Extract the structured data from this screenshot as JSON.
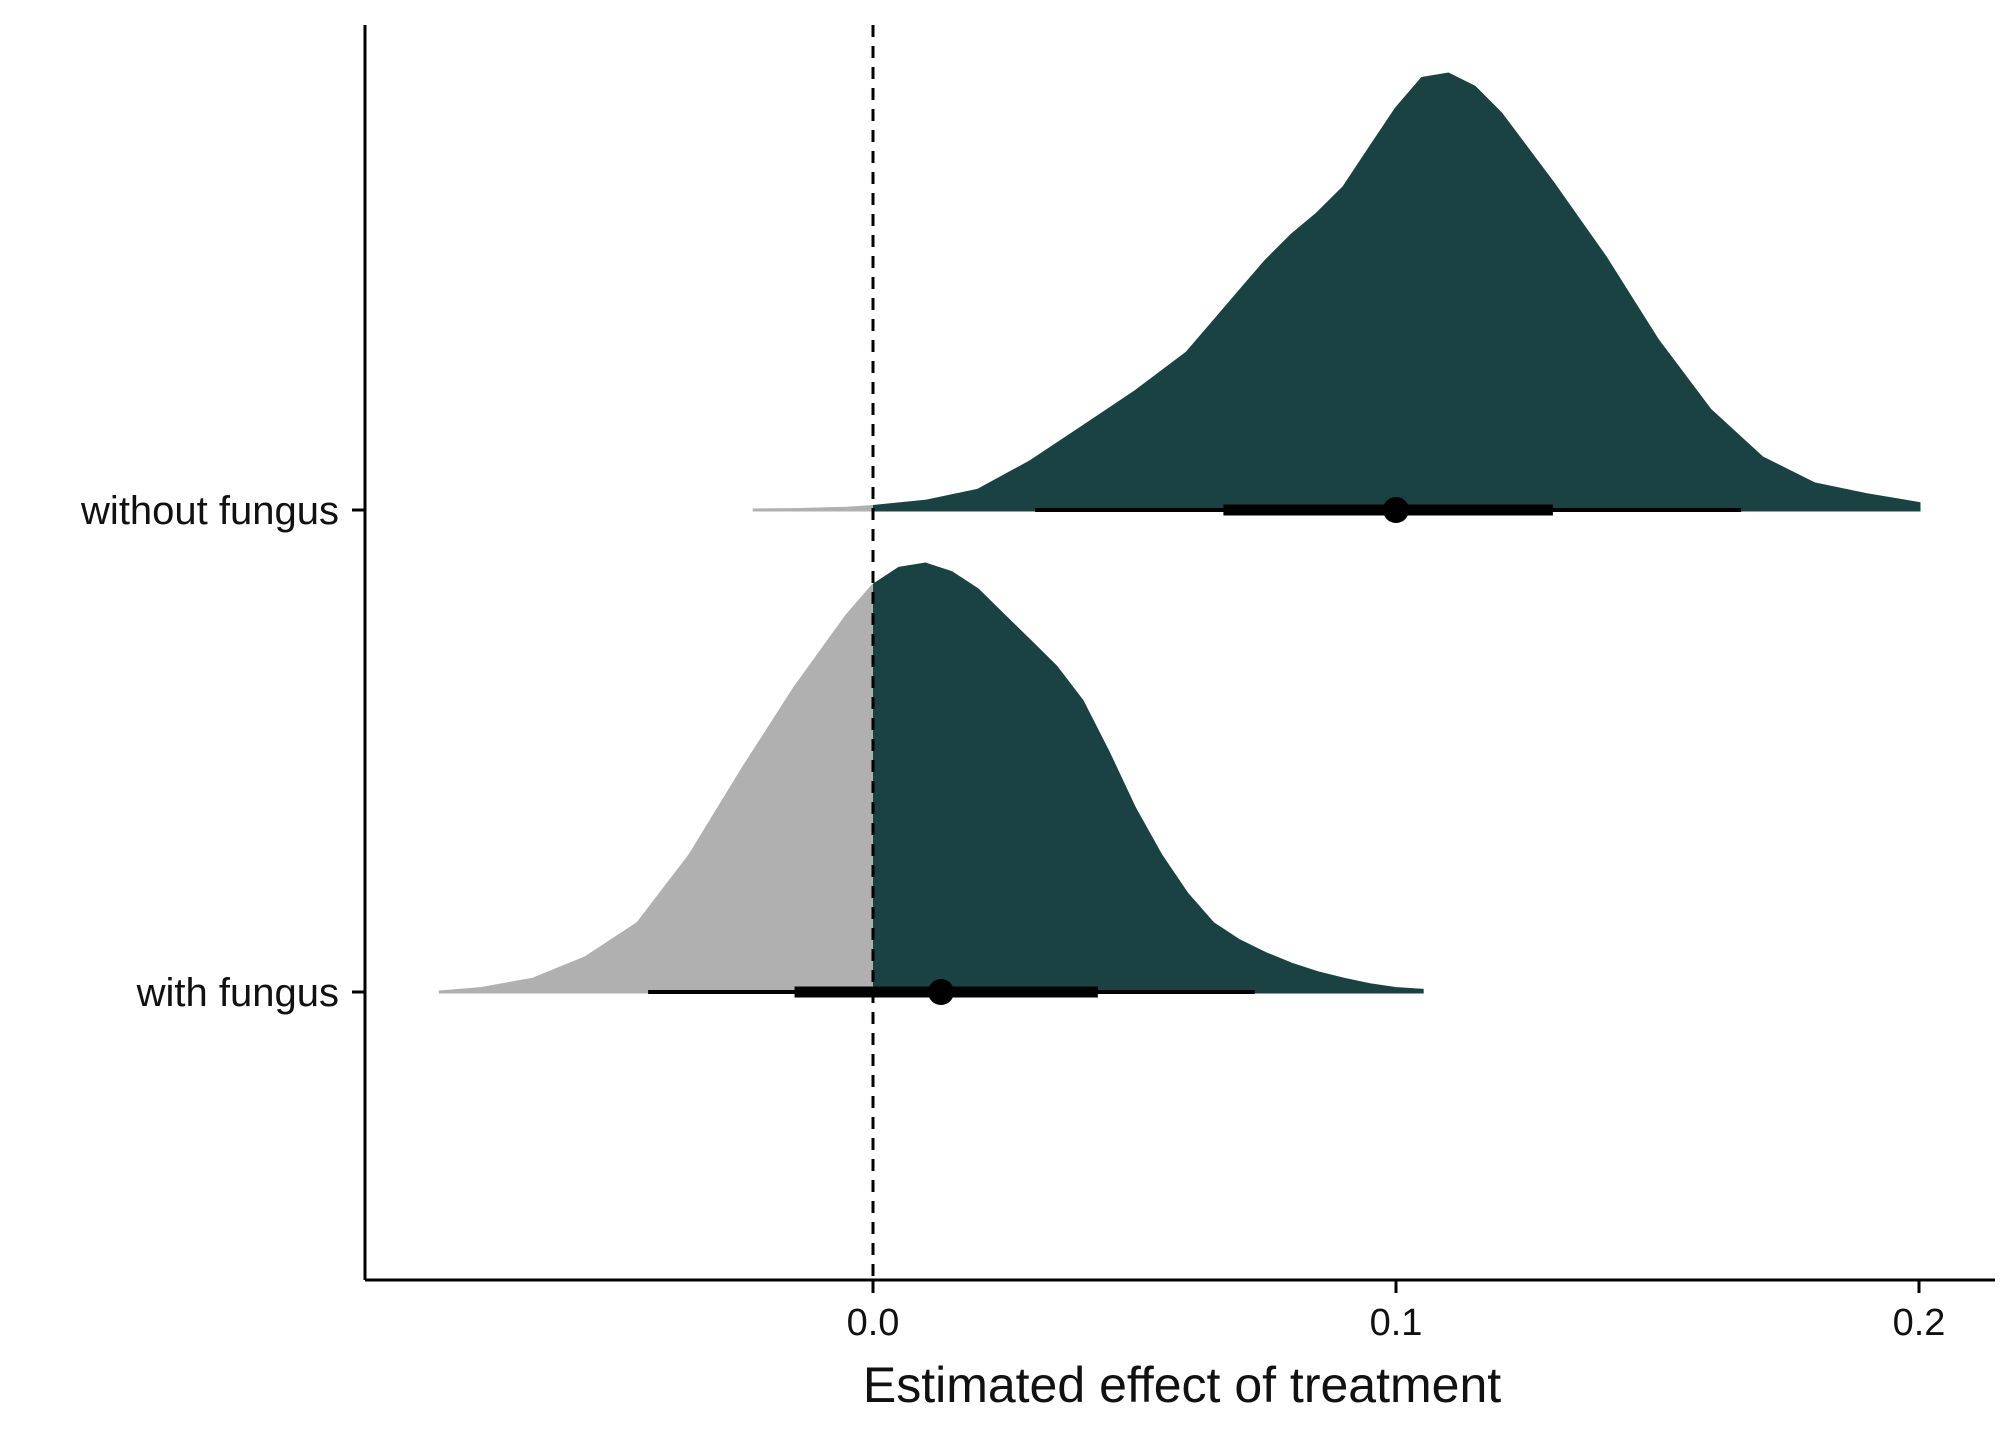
{
  "chart_data": {
    "type": "halfeye",
    "title": "",
    "xlabel": "Estimated effect of treatment",
    "ylabel": "",
    "xlim": [
      -0.097,
      0.215
    ],
    "x_ticks": [
      0.0,
      0.1,
      0.2
    ],
    "x_tick_labels": [
      "0.0",
      "0.1",
      "0.2"
    ],
    "reference_line": {
      "x": 0.0,
      "style": "dashed"
    },
    "grid": false,
    "legend": "none",
    "colors": {
      "above_zero": "#1b4242",
      "below_zero": "#b0b0b0",
      "interval": "#000000"
    },
    "categories": [
      "without fungus",
      "with fungus"
    ],
    "series": [
      {
        "category": "without fungus",
        "point_estimate": 0.1,
        "interval_66": [
          0.067,
          0.13
        ],
        "interval_95": [
          0.031,
          0.166
        ],
        "support": [
          -0.023,
          0.2
        ],
        "density": [
          [
            -0.023,
            0.0
          ],
          [
            -0.015,
            0.001
          ],
          [
            -0.005,
            0.004
          ],
          [
            0.0,
            0.008
          ],
          [
            0.01,
            0.02
          ],
          [
            0.02,
            0.045
          ],
          [
            0.03,
            0.11
          ],
          [
            0.04,
            0.19
          ],
          [
            0.05,
            0.27
          ],
          [
            0.06,
            0.36
          ],
          [
            0.065,
            0.43
          ],
          [
            0.07,
            0.5
          ],
          [
            0.075,
            0.57
          ],
          [
            0.08,
            0.63
          ],
          [
            0.085,
            0.68
          ],
          [
            0.09,
            0.74
          ],
          [
            0.095,
            0.83
          ],
          [
            0.1,
            0.92
          ],
          [
            0.105,
            0.99
          ],
          [
            0.11,
            1.0
          ],
          [
            0.115,
            0.97
          ],
          [
            0.12,
            0.91
          ],
          [
            0.125,
            0.83
          ],
          [
            0.13,
            0.75
          ],
          [
            0.14,
            0.58
          ],
          [
            0.15,
            0.39
          ],
          [
            0.16,
            0.23
          ],
          [
            0.17,
            0.12
          ],
          [
            0.18,
            0.06
          ],
          [
            0.19,
            0.035
          ],
          [
            0.2,
            0.015
          ]
        ]
      },
      {
        "category": "with fungus",
        "point_estimate": 0.013,
        "interval_66": [
          -0.015,
          0.043
        ],
        "interval_95": [
          -0.043,
          0.073
        ],
        "support": [
          -0.083,
          0.105
        ],
        "density": [
          [
            -0.083,
            0.0
          ],
          [
            -0.075,
            0.008
          ],
          [
            -0.065,
            0.03
          ],
          [
            -0.055,
            0.08
          ],
          [
            -0.045,
            0.16
          ],
          [
            -0.035,
            0.32
          ],
          [
            -0.025,
            0.52
          ],
          [
            -0.015,
            0.71
          ],
          [
            -0.005,
            0.88
          ],
          [
            0.0,
            0.95
          ],
          [
            0.005,
            0.99
          ],
          [
            0.01,
            1.0
          ],
          [
            0.015,
            0.98
          ],
          [
            0.02,
            0.94
          ],
          [
            0.025,
            0.88
          ],
          [
            0.03,
            0.82
          ],
          [
            0.035,
            0.76
          ],
          [
            0.04,
            0.68
          ],
          [
            0.045,
            0.56
          ],
          [
            0.05,
            0.43
          ],
          [
            0.055,
            0.32
          ],
          [
            0.06,
            0.23
          ],
          [
            0.065,
            0.16
          ],
          [
            0.07,
            0.12
          ],
          [
            0.075,
            0.09
          ],
          [
            0.08,
            0.065
          ],
          [
            0.085,
            0.045
          ],
          [
            0.09,
            0.03
          ],
          [
            0.095,
            0.017
          ],
          [
            0.1,
            0.008
          ],
          [
            0.105,
            0.004
          ]
        ]
      }
    ]
  }
}
